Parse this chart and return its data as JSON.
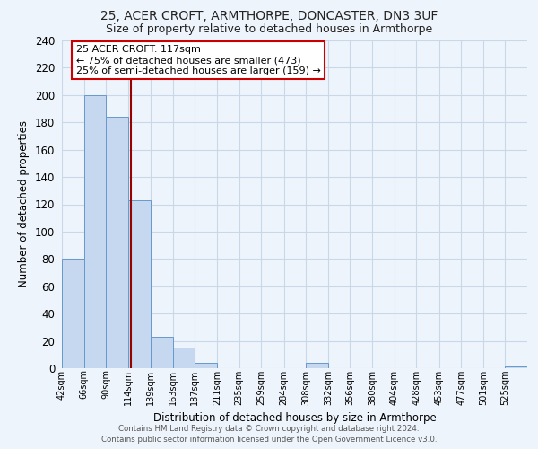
{
  "title1": "25, ACER CROFT, ARMTHORPE, DONCASTER, DN3 3UF",
  "title2": "Size of property relative to detached houses in Armthorpe",
  "xlabel": "Distribution of detached houses by size in Armthorpe",
  "ylabel": "Number of detached properties",
  "bin_labels": [
    "42sqm",
    "66sqm",
    "90sqm",
    "114sqm",
    "139sqm",
    "163sqm",
    "187sqm",
    "211sqm",
    "235sqm",
    "259sqm",
    "284sqm",
    "308sqm",
    "332sqm",
    "356sqm",
    "380sqm",
    "404sqm",
    "428sqm",
    "453sqm",
    "477sqm",
    "501sqm",
    "525sqm"
  ],
  "bin_edges": [
    42,
    66,
    90,
    114,
    139,
    163,
    187,
    211,
    235,
    259,
    284,
    308,
    332,
    356,
    380,
    404,
    428,
    453,
    477,
    501,
    525,
    549
  ],
  "bar_values": [
    80,
    200,
    184,
    123,
    23,
    15,
    4,
    0,
    0,
    0,
    0,
    4,
    0,
    0,
    0,
    0,
    0,
    0,
    0,
    0,
    1
  ],
  "bar_color": "#c5d8f0",
  "bar_edge_color": "#6699cc",
  "grid_color": "#c8d8e8",
  "background_color": "#eef4fb",
  "property_value": 117,
  "property_label": "25 ACER CROFT: 117sqm",
  "annotation_line1": "← 75% of detached houses are smaller (473)",
  "annotation_line2": "25% of semi-detached houses are larger (159) →",
  "annotation_box_color": "#ffffff",
  "annotation_box_edge": "#cc0000",
  "vline_color": "#990000",
  "ylim": [
    0,
    240
  ],
  "yticks": [
    0,
    20,
    40,
    60,
    80,
    100,
    120,
    140,
    160,
    180,
    200,
    220,
    240
  ],
  "footer_line1": "Contains HM Land Registry data © Crown copyright and database right 2024.",
  "footer_line2": "Contains public sector information licensed under the Open Government Licence v3.0."
}
